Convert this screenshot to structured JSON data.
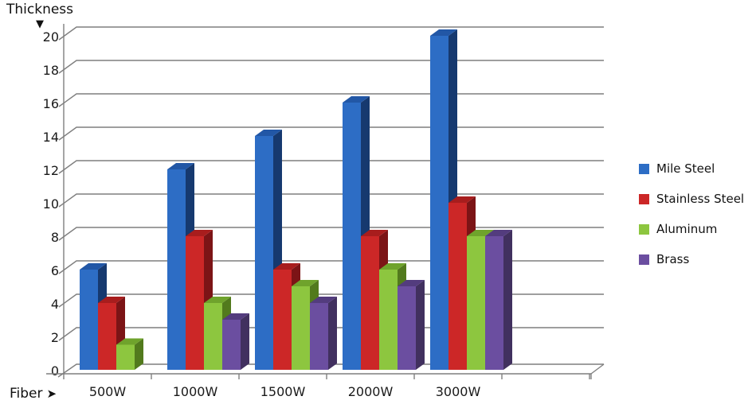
{
  "labels": {
    "y_arrow": "▼",
    "x_arrow": "➤"
  },
  "chart_data": {
    "type": "bar",
    "style": "3d-clustered",
    "title": "",
    "xlabel": "Fiber",
    "ylabel": "Thickness",
    "categories": [
      "500W",
      "1000W",
      "1500W",
      "2000W",
      "3000W"
    ],
    "series": [
      {
        "name": "Mile Steel",
        "color": "#2D6DC5",
        "top_color": "#2257A6",
        "side_color": "#16396F",
        "values": [
          6,
          12,
          14,
          16,
          20
        ]
      },
      {
        "name": "Stainless Steel",
        "color": "#CC2727",
        "top_color": "#A81D1D",
        "side_color": "#7C1416",
        "values": [
          4,
          8,
          6,
          8,
          10
        ]
      },
      {
        "name": "Aluminum",
        "color": "#8DC63F",
        "top_color": "#6FA32C",
        "side_color": "#527A1D",
        "values": [
          1.5,
          4,
          5,
          6,
          8
        ]
      },
      {
        "name": "Brass",
        "color": "#6B4EA0",
        "top_color": "#533C7E",
        "side_color": "#41305F",
        "values": [
          0,
          3,
          4,
          5,
          8
        ]
      }
    ],
    "ylim": [
      0,
      20
    ],
    "ytick_step": 2,
    "grid": true,
    "legend_position": "right",
    "background": "#ffffff",
    "axis_color": "#7f7f7f",
    "tick_label_color": "#1a1a1a"
  }
}
